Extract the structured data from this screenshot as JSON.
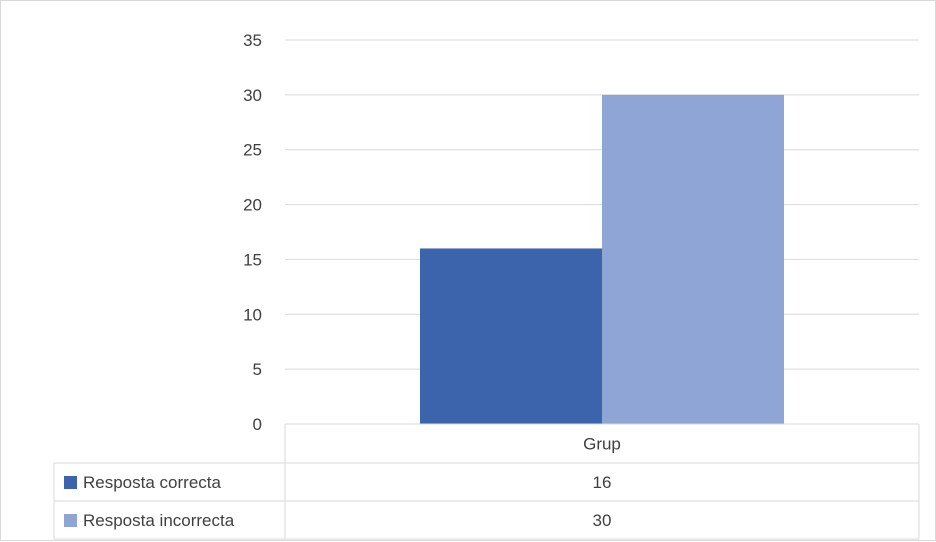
{
  "chart_data": {
    "type": "bar",
    "categories": [
      "Grup"
    ],
    "series": [
      {
        "name": "Resposta correcta",
        "values": [
          16
        ],
        "color": "#3C64AD"
      },
      {
        "name": "Resposta incorrecta",
        "values": [
          30
        ],
        "color": "#8FA5D5"
      }
    ],
    "ylim": [
      0,
      35
    ],
    "yticks": [
      0,
      5,
      10,
      15,
      20,
      25,
      30,
      35
    ],
    "grid": true,
    "legend": "data-table",
    "title": "",
    "xlabel": "",
    "ylabel": ""
  }
}
